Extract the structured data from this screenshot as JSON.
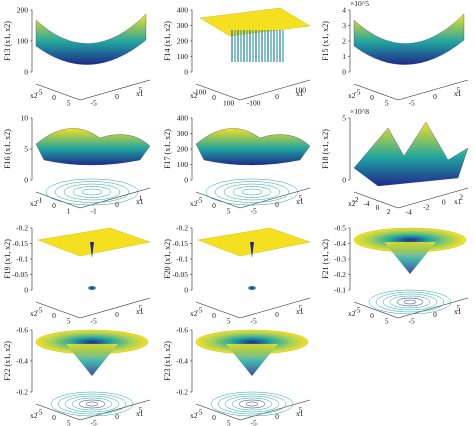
{
  "colors": {
    "low": "#1f2a8a",
    "mid": "#21a5a0",
    "high": "#f5e020",
    "axis": "#222222"
  },
  "chart_data": [
    {
      "type": "surface",
      "id": "F13",
      "title": "",
      "ylabel": "F13 (x1, x2)",
      "xlabel": "x1",
      "zlabel": "",
      "zticks": [
        "0",
        "100",
        "200"
      ],
      "x1_ticks": [
        "-5",
        "0",
        "5"
      ],
      "x2_ticks": [
        "-5",
        "0",
        "5"
      ],
      "x1_label": "x1",
      "x2_label": "x2",
      "scale_note": ""
    },
    {
      "type": "surface",
      "id": "F14",
      "title": "",
      "ylabel": "F14 (x1, x2)",
      "zticks": [
        "0",
        "100",
        "200",
        "300",
        "400"
      ],
      "x1_ticks": [
        "-100",
        "0",
        "100"
      ],
      "x2_ticks": [
        "-100",
        "0",
        "100"
      ],
      "x1_label": "x1",
      "x2_label": "x2",
      "scale_note": ""
    },
    {
      "type": "surface",
      "id": "F15",
      "title": "",
      "ylabel": "F15 (x1, x2)",
      "zticks": [
        "0",
        "1",
        "2",
        "3",
        "4"
      ],
      "x1_ticks": [
        "-5",
        "0",
        "5"
      ],
      "x2_ticks": [
        "-5",
        "0",
        "5"
      ],
      "x1_label": "x1",
      "x2_label": "x2",
      "scale_note": "×10^5"
    },
    {
      "type": "surface",
      "id": "F16",
      "title": "",
      "ylabel": "F16 (x1, x2)",
      "zticks": [
        "0",
        "5",
        "10"
      ],
      "x1_ticks": [
        "-1",
        "0",
        "1"
      ],
      "x2_ticks": [
        "-1",
        "0",
        "1"
      ],
      "x1_label": "x1",
      "x2_label": "x2",
      "scale_note": ""
    },
    {
      "type": "surface",
      "id": "F17",
      "title": "",
      "ylabel": "F17 (x1, x2)",
      "zticks": [
        "0",
        "100",
        "200",
        "300",
        "400"
      ],
      "x1_ticks": [
        "-5",
        "0",
        "5"
      ],
      "x2_ticks": [
        "-5",
        "0",
        "5"
      ],
      "x1_label": "x1",
      "x2_label": "x2",
      "scale_note": ""
    },
    {
      "type": "surface",
      "id": "F18",
      "title": "",
      "ylabel": "F18 (x1, x2)",
      "zticks": [
        "0",
        "5"
      ],
      "x1_ticks": [
        "-4",
        "-2",
        "0",
        "2"
      ],
      "x2_ticks": [
        "-2",
        "-4",
        "0",
        "2"
      ],
      "x1_label": "x1",
      "x2_label": "x2",
      "scale_note": "×10^8"
    },
    {
      "type": "surface",
      "id": "F19",
      "title": "",
      "ylabel": "F19 (x1, x2)",
      "zticks": [
        "0",
        "-0.05",
        "-0.1",
        "-0.15",
        "-0.2"
      ],
      "x1_ticks": [
        "-5",
        "0",
        "5"
      ],
      "x2_ticks": [
        "-5",
        "0",
        "5"
      ],
      "x1_label": "x1",
      "x2_label": "x2",
      "scale_note": ""
    },
    {
      "type": "surface",
      "id": "F20",
      "title": "",
      "ylabel": "F20 (x1, x2)",
      "zticks": [
        "0",
        "-0.05",
        "-0.1",
        "-0.15",
        "-0.2"
      ],
      "x1_ticks": [
        "-5",
        "0",
        "5"
      ],
      "x2_ticks": [
        "-5",
        "0",
        "5"
      ],
      "x1_label": "x1",
      "x2_label": "x2",
      "scale_note": ""
    },
    {
      "type": "surface",
      "id": "F21",
      "title": "",
      "ylabel": "F21 (x1, x2)",
      "zticks": [
        "-0.1",
        "-0.2",
        "-0.3",
        "-0.4",
        "-0.5"
      ],
      "x1_ticks": [
        "-5",
        "0",
        "5"
      ],
      "x2_ticks": [
        "-5",
        "0",
        "5"
      ],
      "x1_label": "x1",
      "x2_label": "x2",
      "scale_note": ""
    },
    {
      "type": "surface",
      "id": "F22",
      "title": "",
      "ylabel": "F22 (x1, x2)",
      "zticks": [
        "-0.2",
        "-0.4",
        "-0.6"
      ],
      "x1_ticks": [
        "-5",
        "0",
        "5"
      ],
      "x2_ticks": [
        "-5",
        "0",
        "5"
      ],
      "x1_label": "x1",
      "x2_label": "x2",
      "scale_note": ""
    },
    {
      "type": "surface",
      "id": "F23",
      "title": "",
      "ylabel": "F23 (x1, x2)",
      "zticks": [
        "-0.2",
        "-0.4",
        "-0.6"
      ],
      "x1_ticks": [
        "-5",
        "0",
        "5"
      ],
      "x2_ticks": [
        "-5",
        "0",
        "5"
      ],
      "x1_label": "x1",
      "x2_label": "x2",
      "scale_note": ""
    }
  ]
}
